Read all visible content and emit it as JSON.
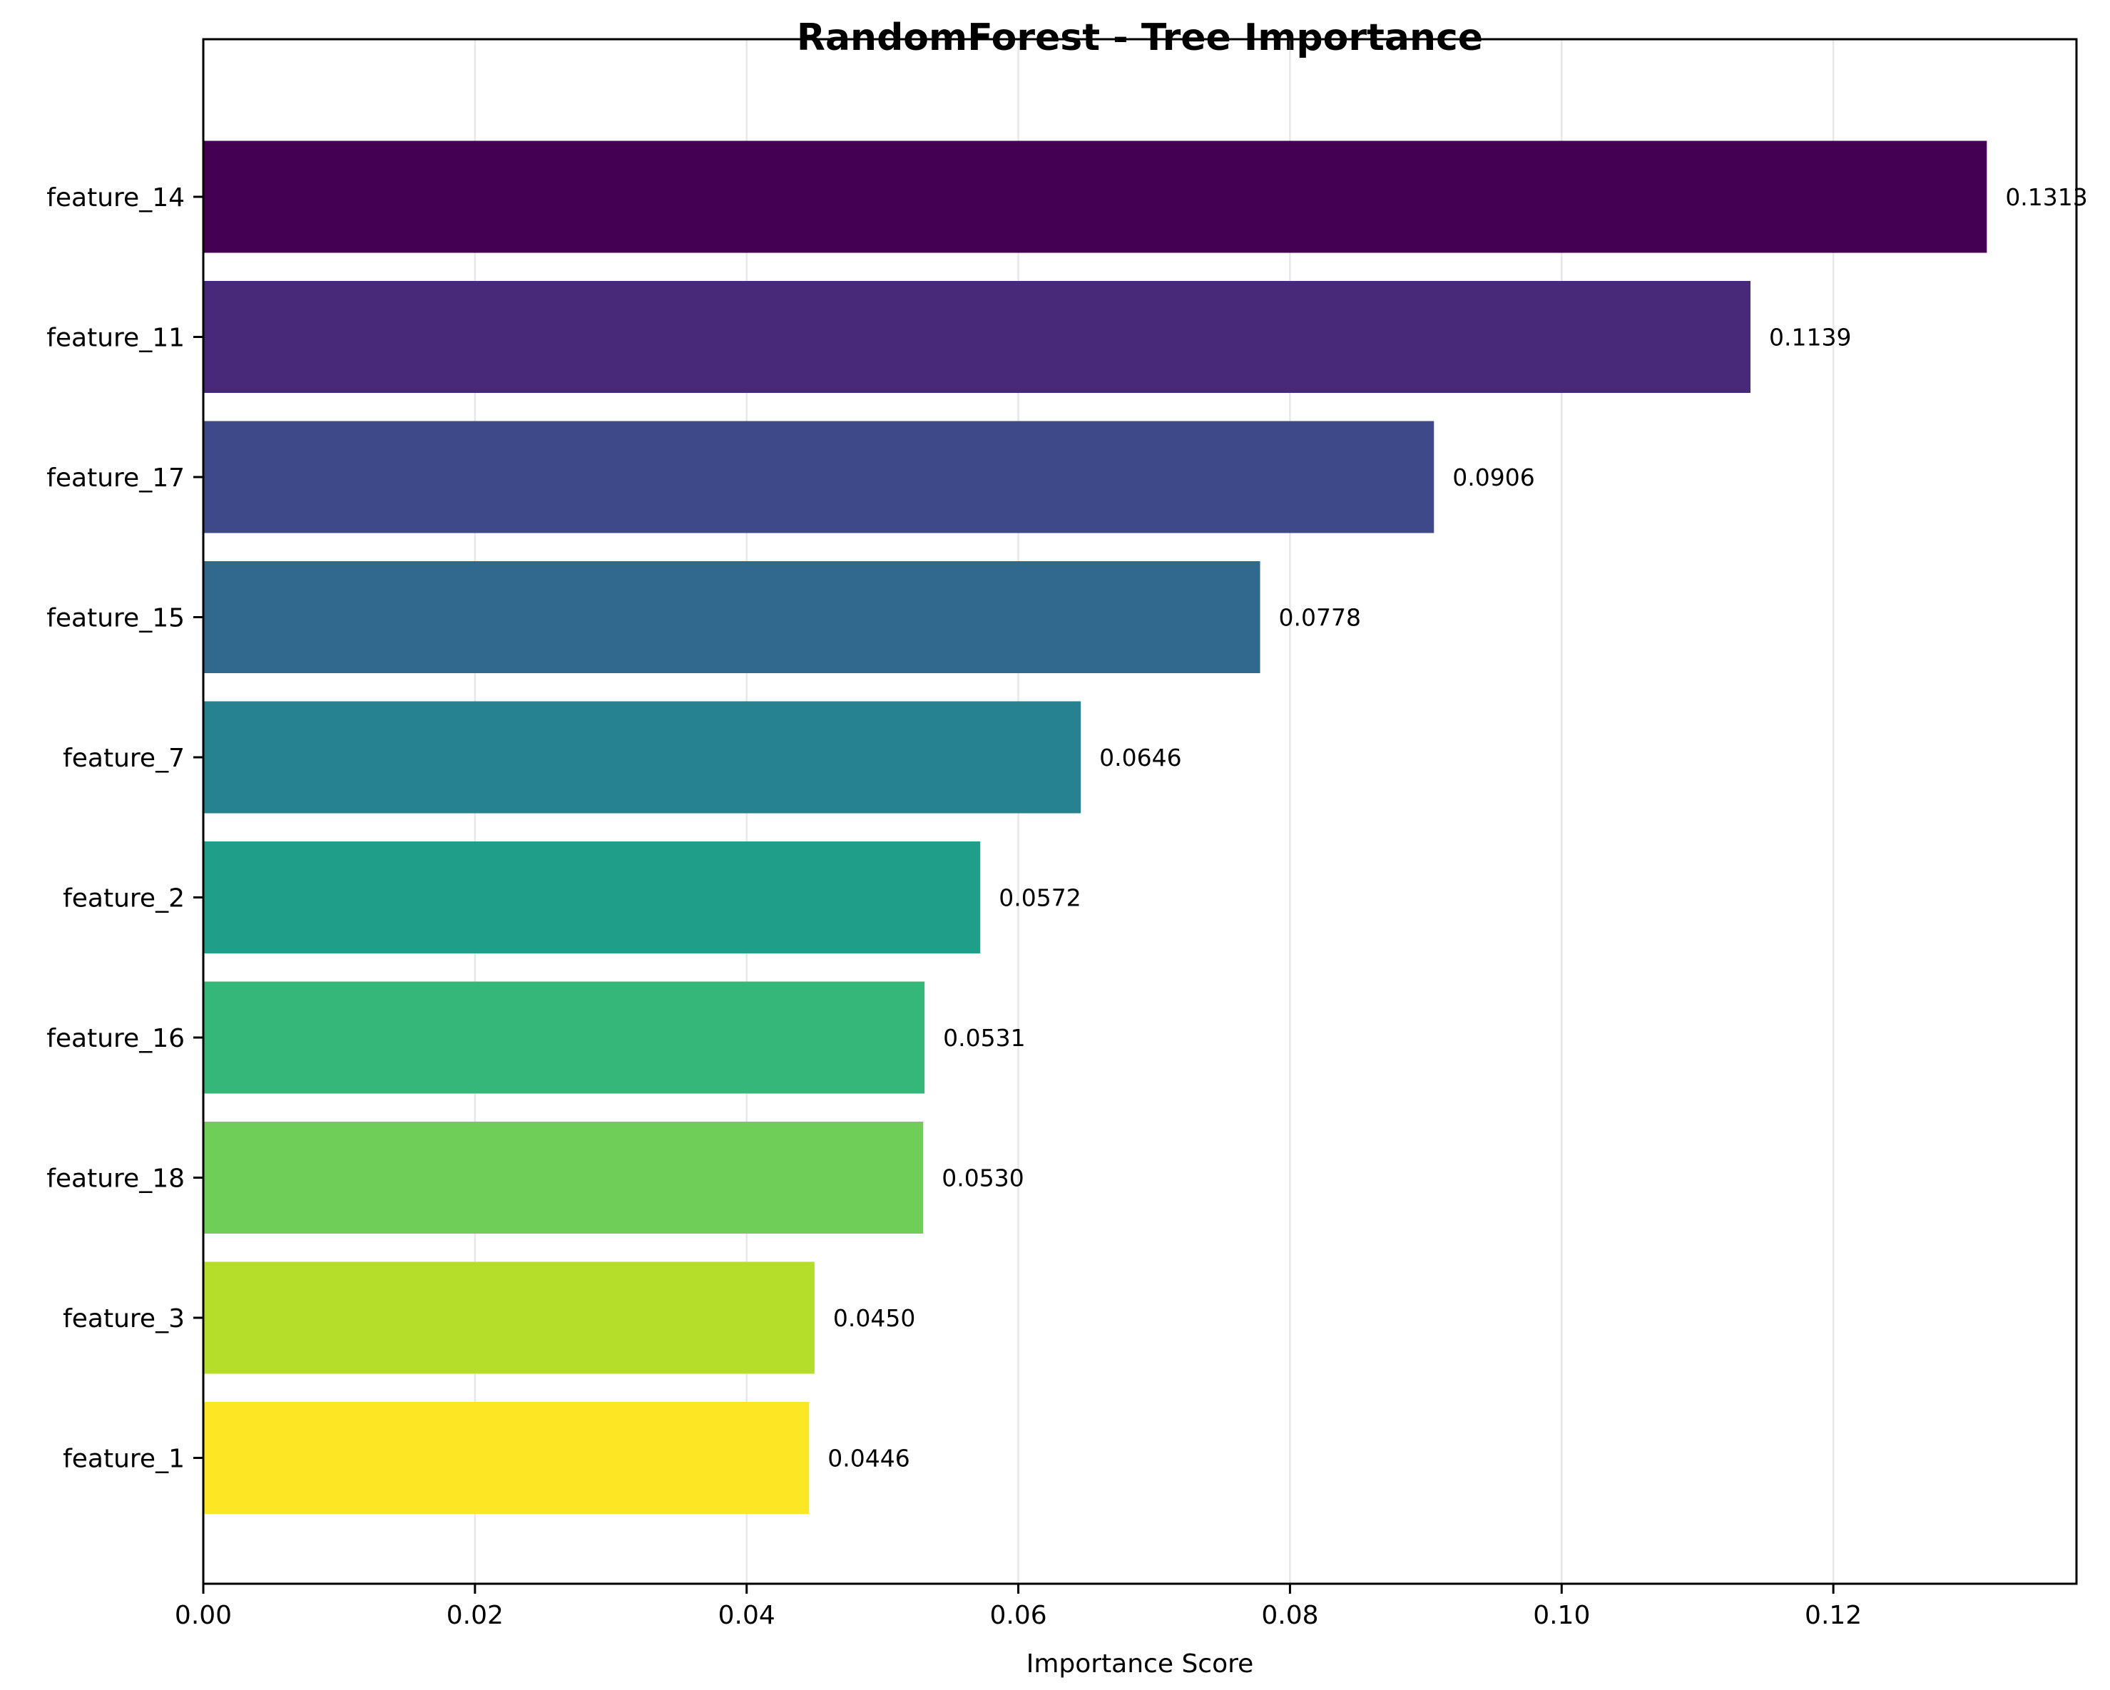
{
  "chart_data": {
    "type": "bar",
    "orientation": "horizontal",
    "title": "RandomForest - Tree Importance",
    "xlabel": "Importance Score",
    "ylabel": "",
    "xlim": [
      0,
      0.1379
    ],
    "xticks": [
      0.0,
      0.02,
      0.04,
      0.06,
      0.08,
      0.1,
      0.12
    ],
    "xtick_labels": [
      "0.00",
      "0.02",
      "0.04",
      "0.06",
      "0.08",
      "0.10",
      "0.12"
    ],
    "grid": "x",
    "categories": [
      "feature_14",
      "feature_11",
      "feature_17",
      "feature_15",
      "feature_7",
      "feature_2",
      "feature_16",
      "feature_18",
      "feature_3",
      "feature_1"
    ],
    "values": [
      0.1313,
      0.1139,
      0.0906,
      0.0778,
      0.0646,
      0.0572,
      0.0531,
      0.053,
      0.045,
      0.0446
    ],
    "value_labels": [
      "0.1313",
      "0.1139",
      "0.0906",
      "0.0778",
      "0.0646",
      "0.0572",
      "0.0531",
      "0.0530",
      "0.0450",
      "0.0446"
    ],
    "colors": [
      "#440154",
      "#482878",
      "#3e4989",
      "#31688e",
      "#26828e",
      "#1f9e89",
      "#35b779",
      "#6ece58",
      "#b5de2b",
      "#fde725"
    ]
  }
}
